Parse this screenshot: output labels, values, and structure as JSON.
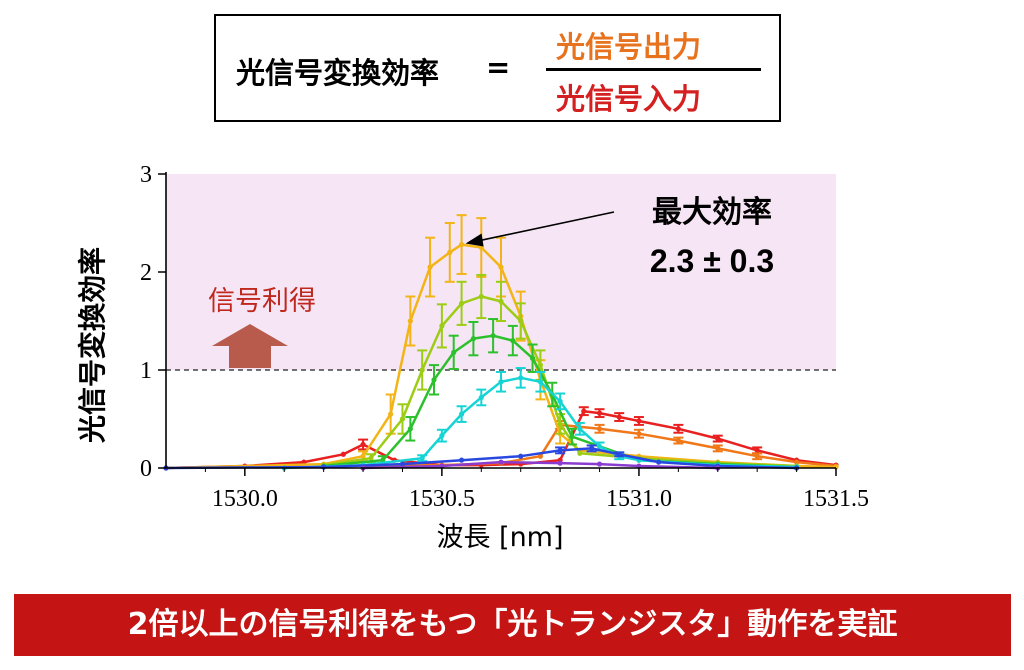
{
  "formula": {
    "lhs": "光信号変換効率",
    "equals": "=",
    "numerator": "光信号出力",
    "denominator": "光信号入力",
    "numerator_color": "#e8731e",
    "denominator_color": "#d42020"
  },
  "chart_data": {
    "type": "line",
    "xlabel": "波長 [nm]",
    "ylabel": "光信号変換効率",
    "xlim": [
      1529.8,
      1531.5
    ],
    "ylim": [
      0,
      3
    ],
    "xticks": [
      "1530.0",
      "1530.5",
      "1531.0",
      "1531.5"
    ],
    "xtick_values": [
      1530.0,
      1530.5,
      1531.0,
      1531.5
    ],
    "yticks": [
      "0",
      "1",
      "2",
      "3"
    ],
    "ytick_values": [
      0,
      1,
      2,
      3
    ],
    "threshold": 1,
    "gain_region": [
      1,
      3
    ],
    "gain_region_color": "#f6e6f5",
    "gain_label": "信号利得",
    "gain_label_color": "#c0281e",
    "gain_arrow_color": "#b85a4c",
    "annotation": {
      "title": "最大効率",
      "value": "2.3 ± 0.3",
      "point": [
        1530.55,
        2.28
      ]
    },
    "series": [
      {
        "name": "red",
        "color": "#e82020",
        "x": [
          1529.8,
          1530.0,
          1530.15,
          1530.25,
          1530.3,
          1530.38,
          1530.5,
          1530.6,
          1530.7,
          1530.8,
          1530.86,
          1530.9,
          1530.95,
          1531.0,
          1531.1,
          1531.2,
          1531.3,
          1531.4,
          1531.5
        ],
        "y": [
          0.0,
          0.02,
          0.06,
          0.14,
          0.24,
          0.08,
          0.03,
          0.03,
          0.04,
          0.08,
          0.58,
          0.56,
          0.52,
          0.48,
          0.4,
          0.3,
          0.18,
          0.08,
          0.03
        ],
        "err": [
          0,
          0,
          0,
          0,
          0.05,
          0,
          0,
          0,
          0,
          0,
          0.04,
          0.04,
          0.04,
          0.04,
          0.04,
          0.03,
          0.03,
          0,
          0
        ]
      },
      {
        "name": "orange",
        "color": "#f07818",
        "x": [
          1530.3,
          1530.5,
          1530.65,
          1530.75,
          1530.8,
          1530.9,
          1531.0,
          1531.1,
          1531.2,
          1531.3,
          1531.4,
          1531.5
        ],
        "y": [
          0.02,
          0.03,
          0.05,
          0.12,
          0.44,
          0.4,
          0.35,
          0.28,
          0.2,
          0.12,
          0.06,
          0.02
        ],
        "err": [
          0,
          0,
          0,
          0,
          0.04,
          0.04,
          0.04,
          0.03,
          0.03,
          0.03,
          0,
          0
        ]
      },
      {
        "name": "yellow",
        "color": "#f2b416",
        "x": [
          1529.8,
          1530.2,
          1530.3,
          1530.37,
          1530.42,
          1530.47,
          1530.52,
          1530.55,
          1530.6,
          1530.65,
          1530.7,
          1530.75,
          1530.8,
          1530.85,
          1531.0,
          1531.2,
          1531.4,
          1531.5
        ],
        "y": [
          0.0,
          0.04,
          0.12,
          0.55,
          1.5,
          2.05,
          2.2,
          2.28,
          2.25,
          2.05,
          1.55,
          0.9,
          0.35,
          0.18,
          0.12,
          0.06,
          0.02,
          0.01
        ],
        "err": [
          0,
          0,
          0.05,
          0.2,
          0.25,
          0.3,
          0.3,
          0.3,
          0.3,
          0.3,
          0.25,
          0.2,
          0.1,
          0,
          0,
          0,
          0,
          0
        ]
      },
      {
        "name": "yellow-green",
        "color": "#9ccc14",
        "x": [
          1530.2,
          1530.32,
          1530.4,
          1530.45,
          1530.5,
          1530.55,
          1530.6,
          1530.65,
          1530.7,
          1530.75,
          1530.8,
          1530.85,
          1531.0,
          1531.2,
          1531.4
        ],
        "y": [
          0.03,
          0.1,
          0.5,
          1.0,
          1.45,
          1.68,
          1.75,
          1.7,
          1.5,
          1.05,
          0.45,
          0.15,
          0.1,
          0.05,
          0.02
        ],
        "err": [
          0,
          0.04,
          0.15,
          0.2,
          0.22,
          0.22,
          0.22,
          0.2,
          0.18,
          0.15,
          0.1,
          0,
          0,
          0,
          0
        ]
      },
      {
        "name": "green",
        "color": "#2cc02c",
        "x": [
          1530.2,
          1530.35,
          1530.42,
          1530.48,
          1530.53,
          1530.58,
          1530.63,
          1530.68,
          1530.73,
          1530.78,
          1530.83,
          1531.0,
          1531.2,
          1531.4
        ],
        "y": [
          0.02,
          0.08,
          0.4,
          0.9,
          1.18,
          1.32,
          1.35,
          1.3,
          1.12,
          0.75,
          0.32,
          0.08,
          0.04,
          0.01
        ],
        "err": [
          0,
          0.04,
          0.12,
          0.15,
          0.17,
          0.17,
          0.17,
          0.15,
          0.14,
          0.12,
          0.08,
          0,
          0,
          0
        ]
      },
      {
        "name": "cyan",
        "color": "#16d4d4",
        "x": [
          1530.1,
          1530.3,
          1530.45,
          1530.5,
          1530.55,
          1530.6,
          1530.65,
          1530.7,
          1530.75,
          1530.8,
          1530.85,
          1530.9,
          1530.95,
          1531.0,
          1531.2,
          1531.4
        ],
        "y": [
          0.0,
          0.03,
          0.1,
          0.33,
          0.55,
          0.72,
          0.88,
          0.92,
          0.88,
          0.68,
          0.4,
          0.22,
          0.12,
          0.08,
          0.03,
          0.01
        ],
        "err": [
          0,
          0,
          0.03,
          0.06,
          0.08,
          0.08,
          0.1,
          0.1,
          0.1,
          0.08,
          0.06,
          0.04,
          0.03,
          0,
          0,
          0
        ]
      },
      {
        "name": "blue",
        "color": "#2848e0",
        "x": [
          1529.8,
          1530.2,
          1530.4,
          1530.55,
          1530.7,
          1530.8,
          1530.88,
          1530.95,
          1531.05,
          1531.2,
          1531.4
        ],
        "y": [
          0.0,
          0.01,
          0.04,
          0.08,
          0.12,
          0.18,
          0.2,
          0.14,
          0.06,
          0.02,
          0.0
        ],
        "err": [
          0,
          0,
          0,
          0,
          0,
          0.03,
          0.03,
          0.02,
          0,
          0,
          0
        ]
      },
      {
        "name": "purple",
        "color": "#8a3cd0",
        "x": [
          1530.3,
          1530.5,
          1530.65,
          1530.8,
          1530.9,
          1531.0,
          1531.2
        ],
        "y": [
          0.0,
          0.02,
          0.06,
          0.05,
          0.04,
          0.02,
          0.0
        ],
        "err": [
          0,
          0,
          0,
          0,
          0,
          0,
          0
        ]
      }
    ]
  },
  "banner": {
    "text": "2倍以上の信号利得をもつ「光トランジスタ」動作を実証",
    "color": "#c41414"
  }
}
